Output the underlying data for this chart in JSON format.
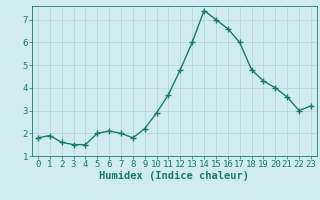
{
  "x": [
    0,
    1,
    2,
    3,
    4,
    5,
    6,
    7,
    8,
    9,
    10,
    11,
    12,
    13,
    14,
    15,
    16,
    17,
    18,
    19,
    20,
    21,
    22,
    23
  ],
  "y": [
    1.8,
    1.9,
    1.6,
    1.5,
    1.5,
    2.0,
    2.1,
    2.0,
    1.8,
    2.2,
    2.9,
    3.7,
    4.8,
    6.0,
    7.4,
    7.0,
    6.6,
    6.0,
    4.8,
    4.3,
    4.0,
    3.6,
    3.0,
    3.2
  ],
  "line_color": "#1a7a6e",
  "bg_color": "#d0ecec",
  "grid_color": "#b8d8d8",
  "xlabel": "Humidex (Indice chaleur)",
  "ylim": [
    1,
    7.6
  ],
  "xlim": [
    -0.5,
    23.5
  ],
  "yticks": [
    1,
    2,
    3,
    4,
    5,
    6,
    7
  ],
  "xticks": [
    0,
    1,
    2,
    3,
    4,
    5,
    6,
    7,
    8,
    9,
    10,
    11,
    12,
    13,
    14,
    15,
    16,
    17,
    18,
    19,
    20,
    21,
    22,
    23
  ],
  "marker_size": 2.5,
  "line_width": 1.0,
  "xlabel_fontsize": 7.5,
  "tick_fontsize": 6.5
}
